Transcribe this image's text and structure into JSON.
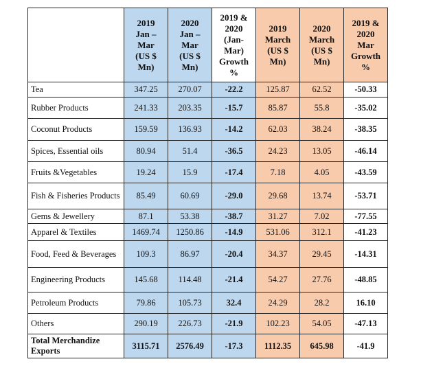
{
  "table": {
    "headers": [
      "",
      "2019\nJan –\nMar\n(US $\nMn)",
      "2020\nJan –\nMar\n(US $\nMn)",
      "2019 &\n2020\n(Jan-\nMar)\nGrowth\n%",
      "2019\nMarch\n(US $\nMn)",
      "2020\nMarch\n(US $\nMn)",
      "2019 &\n2020\nMar\nGrowth\n%"
    ],
    "rows": [
      {
        "category": "Tea",
        "c1": "347.25",
        "c2": "270.07",
        "c3": "-22.2",
        "c4": "125.87",
        "c5": "62.52",
        "c6": "-50.33"
      },
      {
        "category": "Rubber Products",
        "c1": "241.33",
        "c2": "203.35",
        "c3": "-15.7",
        "c4": "85.87",
        "c5": "55.8",
        "c6": "-35.02"
      },
      {
        "category": "Coconut Products",
        "c1": "159.59",
        "c2": "136.93",
        "c3": "-14.2",
        "c4": "62.03",
        "c5": "38.24",
        "c6": "-38.35"
      },
      {
        "category": "Spices, Essential oils",
        "c1": "80.94",
        "c2": "51.4",
        "c3": "-36.5",
        "c4": "24.23",
        "c5": "13.05",
        "c6": "-46.14"
      },
      {
        "category": "Fruits &Vegetables",
        "c1": "19.24",
        "c2": "15.9",
        "c3": "-17.4",
        "c4": "7.18",
        "c5": "4.05",
        "c6": "-43.59"
      },
      {
        "category": "Fish & Fisheries Products",
        "c1": "85.49",
        "c2": "60.69",
        "c3": "-29.0",
        "c4": "29.68",
        "c5": "13.74",
        "c6": "-53.71"
      },
      {
        "category": "Gems & Jewellery",
        "c1": "87.1",
        "c2": "53.38",
        "c3": "-38.7",
        "c4": "31.27",
        "c5": "7.02",
        "c6": "-77.55"
      },
      {
        "category": "Apparel & Textiles",
        "c1": "1469.74",
        "c2": "1250.86",
        "c3": "-14.9",
        "c4": "531.06",
        "c5": "312.1",
        "c6": "-41.23"
      },
      {
        "category": "Food, Feed & Beverages",
        "c1": "109.3",
        "c2": "86.97",
        "c3": "-20.4",
        "c4": "34.37",
        "c5": "29.45",
        "c6": "-14.31"
      },
      {
        "category": "Engineering Products",
        "c1": "145.68",
        "c2": "114.48",
        "c3": "-21.4",
        "c4": "54.27",
        "c5": "27.76",
        "c6": "-48.85"
      },
      {
        "category": "Petroleum Products",
        "c1": "79.86",
        "c2": "105.73",
        "c3": "32.4",
        "c4": "24.29",
        "c5": "28.2",
        "c6": "16.10"
      },
      {
        "category": "Others",
        "c1": "290.19",
        "c2": "226.73",
        "c3": "-21.9",
        "c4": "102.23",
        "c5": "54.05",
        "c6": "-47.13"
      },
      {
        "category": "Total Merchandize Exports",
        "c1": "3115.71",
        "c2": "2576.49",
        "c3": "-17.3",
        "c4": "1112.35",
        "c5": "645.98",
        "c6": "-41.9"
      }
    ]
  },
  "colors": {
    "blue": "#bdd7ee",
    "peach": "#f8cbad"
  }
}
